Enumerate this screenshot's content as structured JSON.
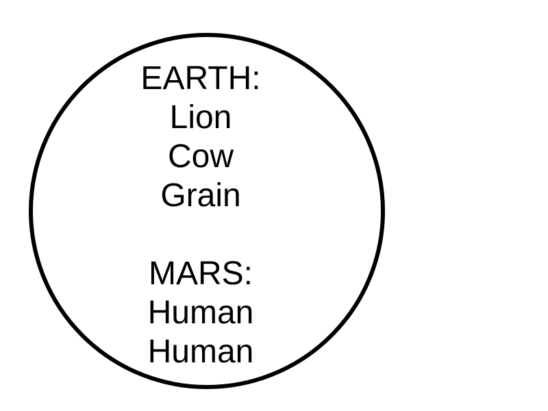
{
  "diagram": {
    "earth": {
      "heading": "EARTH:",
      "items": [
        "Lion",
        "Cow",
        "Grain"
      ]
    },
    "mars": {
      "heading": "MARS:",
      "items": [
        "Human",
        "Human"
      ]
    }
  }
}
